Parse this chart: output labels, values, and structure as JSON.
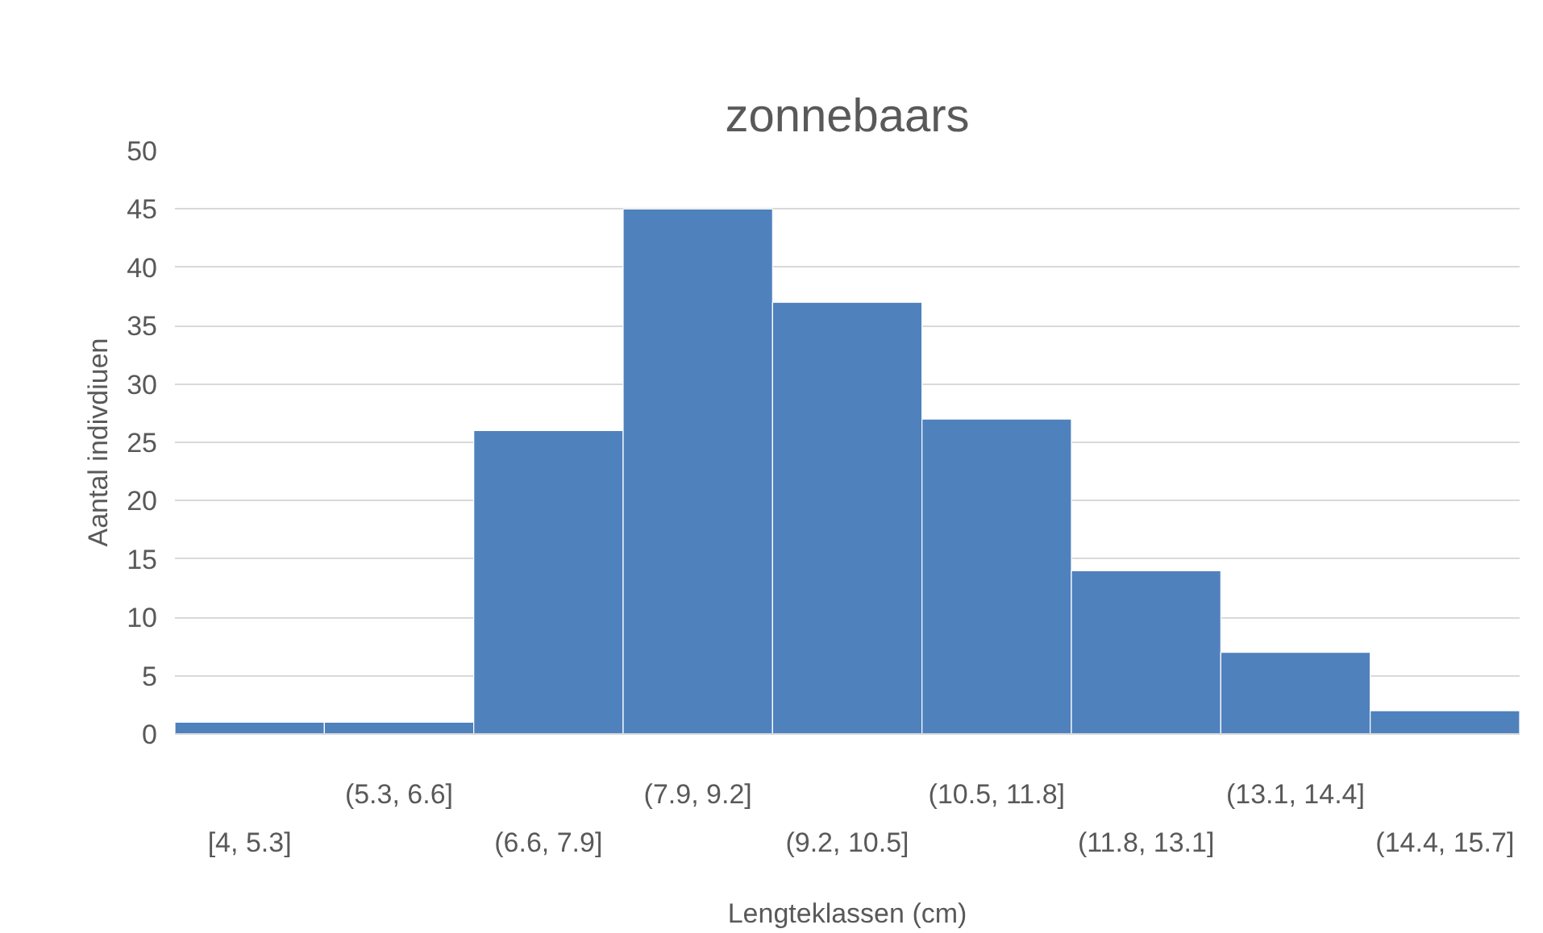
{
  "chart_data": {
    "type": "bar",
    "title": "zonnebaars",
    "xlabel": "Lengteklassen (cm)",
    "ylabel": "Aantal indivdiuen",
    "categories": [
      "[4, 5.3]",
      "(5.3, 6.6]",
      "(6.6, 7.9]",
      "(7.9, 9.2]",
      "(9.2, 10.5]",
      "(10.5, 11.8]",
      "(11.8, 13.1]",
      "(13.1, 14.4]",
      "(14.4, 15.7]"
    ],
    "values": [
      1,
      1,
      26,
      45,
      37,
      27,
      14,
      7,
      2
    ],
    "color": "#4f81bd",
    "ylim": [
      0,
      50
    ],
    "yticks": [
      0,
      5,
      10,
      15,
      20,
      25,
      30,
      35,
      40,
      45,
      50
    ],
    "grid": "y"
  }
}
